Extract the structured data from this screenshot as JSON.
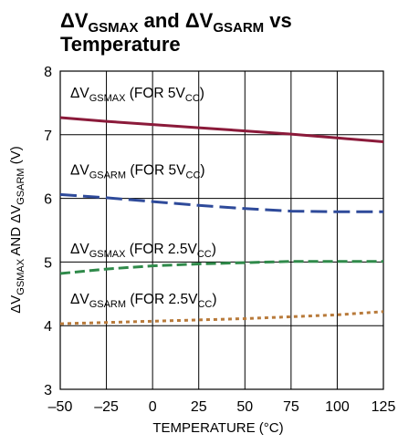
{
  "chart_data": {
    "type": "line",
    "title": {
      "main": "ΔV",
      "sub1": "GSMAX",
      "mid": " and ΔV",
      "sub2": "GSARM",
      "end": " vs",
      "line2": "Temperature"
    },
    "xlabel": "TEMPERATURE (°C)",
    "ylabel": {
      "p1": "ΔV",
      "s1": "GSMAX",
      "p2": " AND ΔV",
      "s2": "GSARM",
      "p3": " (V)"
    },
    "xlim": [
      -50,
      125
    ],
    "ylim": [
      3,
      8
    ],
    "x_ticks": [
      "–50",
      "–25",
      "0",
      "25",
      "50",
      "75",
      "100",
      "125"
    ],
    "x_tick_values": [
      -50,
      -25,
      0,
      25,
      50,
      75,
      100,
      125
    ],
    "y_ticks": [
      "3",
      "4",
      "5",
      "6",
      "7",
      "8"
    ],
    "y_tick_values": [
      3,
      4,
      5,
      6,
      7,
      8
    ],
    "grid": true,
    "series": [
      {
        "label_main": "ΔV",
        "label_sub": "GSMAX",
        "label_cond": " (FOR 5V",
        "label_cond_sub": "CC",
        "label_end": ")",
        "color": "#8b1a3a",
        "dash": "solid",
        "x": [
          -50,
          -25,
          0,
          25,
          50,
          75,
          100,
          125
        ],
        "y": [
          7.27,
          7.21,
          7.16,
          7.11,
          7.06,
          7.01,
          6.95,
          6.89
        ]
      },
      {
        "label_main": "ΔV",
        "label_sub": "GSARM",
        "label_cond": " (FOR 5V",
        "label_cond_sub": "CC",
        "label_end": ")",
        "color": "#2e4a9a",
        "dash": "long",
        "x": [
          -50,
          -25,
          0,
          25,
          50,
          75,
          100,
          125
        ],
        "y": [
          6.06,
          6.01,
          5.95,
          5.89,
          5.84,
          5.8,
          5.79,
          5.79
        ]
      },
      {
        "label_main": "ΔV",
        "label_sub": "GSMAX",
        "label_cond": " (FOR 2.5V",
        "label_cond_sub": "CC",
        "label_end": ")",
        "color": "#2f8a4a",
        "dash": "medium",
        "x": [
          -50,
          -25,
          0,
          25,
          50,
          75,
          100,
          125
        ],
        "y": [
          4.82,
          4.89,
          4.94,
          4.97,
          4.99,
          5.01,
          5.01,
          5.01
        ]
      },
      {
        "label_main": "ΔV",
        "label_sub": "GSARM",
        "label_cond": " (FOR 2.5V",
        "label_cond_sub": "CC",
        "label_end": ")",
        "color": "#b87a3a",
        "dash": "short",
        "x": [
          -50,
          -25,
          0,
          25,
          50,
          75,
          100,
          125
        ],
        "y": [
          4.03,
          4.05,
          4.07,
          4.09,
          4.11,
          4.14,
          4.17,
          4.22
        ]
      }
    ]
  }
}
